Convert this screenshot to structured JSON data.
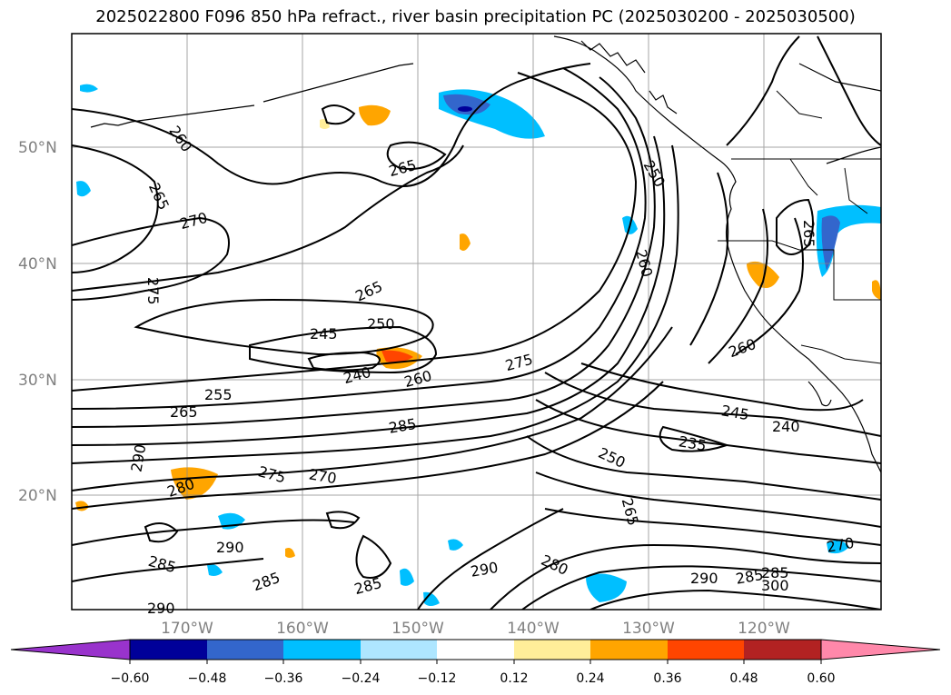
{
  "title": "2025022800 F096 850 hPa refract., river basin precipitation PC (2025030200 - 2025030500)",
  "map": {
    "lat_labels": [
      "50°N",
      "40°N",
      "30°N",
      "20°N"
    ],
    "lon_labels": [
      "170°W",
      "160°W",
      "150°W",
      "140°W",
      "130°W",
      "120°W"
    ],
    "contour_labels": [
      "260",
      "265",
      "270",
      "275",
      "265",
      "265",
      "250",
      "245",
      "240",
      "260",
      "255",
      "265",
      "275",
      "285",
      "290",
      "280",
      "275",
      "270",
      "290",
      "285",
      "285",
      "290",
      "285",
      "280",
      "290",
      "250",
      "265",
      "235",
      "245",
      "240",
      "260",
      "265",
      "250",
      "260",
      "285",
      "300",
      "270",
      "285",
      "290"
    ]
  },
  "colorbar": {
    "ticks": [
      "−0.60",
      "−0.48",
      "−0.36",
      "−0.24",
      "−0.12",
      "0.12",
      "0.24",
      "0.36",
      "0.48",
      "0.60"
    ],
    "colors": [
      "#9933cc",
      "#000099",
      "#3366cc",
      "#00bfff",
      "#aee6ff",
      "#ffffff",
      "#ffee99",
      "#ffa500",
      "#ff4500",
      "#b22222",
      "#ff88aa"
    ]
  }
}
